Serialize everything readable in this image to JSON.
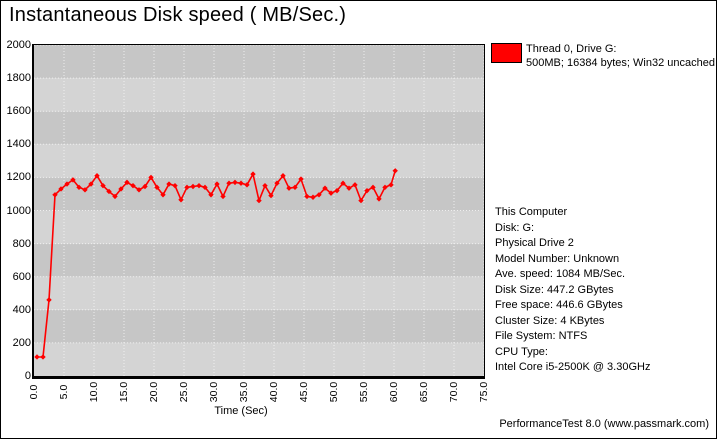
{
  "title": "Instantaneous Disk speed ( MB/Sec.)",
  "legend": {
    "line1": "Thread 0, Drive G:",
    "line2": "500MB; 16384 bytes; Win32 uncached",
    "swatch_color": "#ff0000"
  },
  "info_panel": {
    "lines": [
      "This Computer",
      "Disk: G:",
      "Physical Drive 2",
      "Model Number: Unknown",
      "Ave. speed: 1084 MB/Sec.",
      "Disk Size: 447.2 GBytes",
      "Free space: 446.6 GBytes",
      "Cluster Size: 4 KBytes",
      "File System: NTFS",
      "CPU Type:",
      "Intel Core i5-2500K @ 3.30GHz"
    ]
  },
  "footer": "PerformanceTest 8.0 (www.passmark.com)",
  "colors": {
    "accent": "#ff0000",
    "band_light": "#d4d4d4",
    "band_dark": "#c6c6c6",
    "gridline": "#efefef",
    "axis": "#000000"
  },
  "chart_data": {
    "type": "line",
    "title": "Instantaneous Disk speed ( MB/Sec.)",
    "xlabel": "Time (Sec)",
    "ylabel": "",
    "xlim": [
      0,
      75
    ],
    "ylim": [
      0,
      2000
    ],
    "x_ticks": [
      0,
      5,
      10,
      15,
      20,
      25,
      30,
      35,
      40,
      45,
      50,
      55,
      60,
      65,
      70,
      75
    ],
    "x_tick_labels": [
      "0.0",
      "5.0",
      "10.0",
      "15.0",
      "20.0",
      "25.0",
      "30.0",
      "35.0",
      "40.0",
      "45.0",
      "50.0",
      "55.0",
      "60.0",
      "65.0",
      "70.0",
      "75.0"
    ],
    "y_ticks": [
      0,
      200,
      400,
      600,
      800,
      1000,
      1200,
      1400,
      1600,
      1800,
      2000
    ],
    "y_tick_labels": [
      "0",
      "200",
      "400",
      "600",
      "800",
      "1000",
      "1200",
      "1400",
      "1600",
      "1800",
      "2000"
    ],
    "grid": "dotted",
    "band_interval": 200,
    "legend_position": "top-right",
    "series": [
      {
        "name": "Thread 0, Drive G: 500MB; 16384 bytes; Win32 uncached",
        "color": "#ff0000",
        "marker": "diamond",
        "x": [
          0.5,
          1.5,
          2.5,
          3.5,
          4.5,
          5.5,
          6.5,
          7.5,
          8.5,
          9.5,
          10.5,
          11.5,
          12.5,
          13.5,
          14.5,
          15.5,
          16.5,
          17.5,
          18.5,
          19.5,
          20.5,
          21.5,
          22.5,
          23.5,
          24.5,
          25.5,
          26.5,
          27.5,
          28.5,
          29.5,
          30.5,
          31.5,
          32.5,
          33.5,
          34.5,
          35.5,
          36.5,
          37.5,
          38.5,
          39.5,
          40.5,
          41.5,
          42.5,
          43.5,
          44.5,
          45.5,
          46.5,
          47.5,
          48.5,
          49.5,
          50.5,
          51.5,
          52.5,
          53.5,
          54.5,
          55.5,
          56.5,
          57.5,
          58.5,
          59.5,
          60.2
        ],
        "y": [
          115,
          115,
          460,
          1095,
          1130,
          1160,
          1185,
          1140,
          1125,
          1160,
          1210,
          1150,
          1115,
          1085,
          1130,
          1170,
          1150,
          1125,
          1145,
          1200,
          1140,
          1095,
          1160,
          1150,
          1065,
          1140,
          1145,
          1150,
          1140,
          1095,
          1160,
          1085,
          1165,
          1170,
          1165,
          1155,
          1220,
          1060,
          1150,
          1090,
          1165,
          1210,
          1135,
          1140,
          1190,
          1085,
          1080,
          1095,
          1135,
          1105,
          1120,
          1165,
          1135,
          1155,
          1060,
          1120,
          1140,
          1070,
          1140,
          1155,
          1240
        ]
      }
    ]
  }
}
